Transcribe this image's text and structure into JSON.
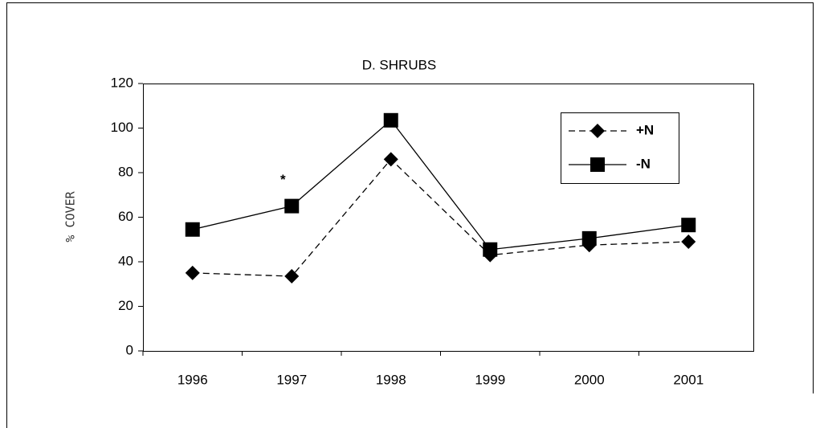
{
  "chart_data": {
    "type": "line",
    "title": "D.  SHRUBS",
    "y_label": "% COVER",
    "categories": [
      "1996",
      "1997",
      "1998",
      "1999",
      "2000",
      "2001"
    ],
    "series": [
      {
        "name": "+N",
        "color": "#000000",
        "dash": true,
        "marker": "diamond",
        "values": [
          35,
          33.5,
          86,
          43,
          47.5,
          49
        ]
      },
      {
        "name": "-N",
        "color": "#000000",
        "dash": false,
        "marker": "square",
        "values": [
          54.5,
          65,
          103.5,
          45.5,
          50.5,
          56.5
        ]
      }
    ],
    "annotations": [
      "*"
    ],
    "ylim": [
      0,
      120
    ],
    "yticks": [
      0,
      20,
      40,
      60,
      80,
      100,
      120
    ],
    "grid": false,
    "legend": "upper right"
  }
}
